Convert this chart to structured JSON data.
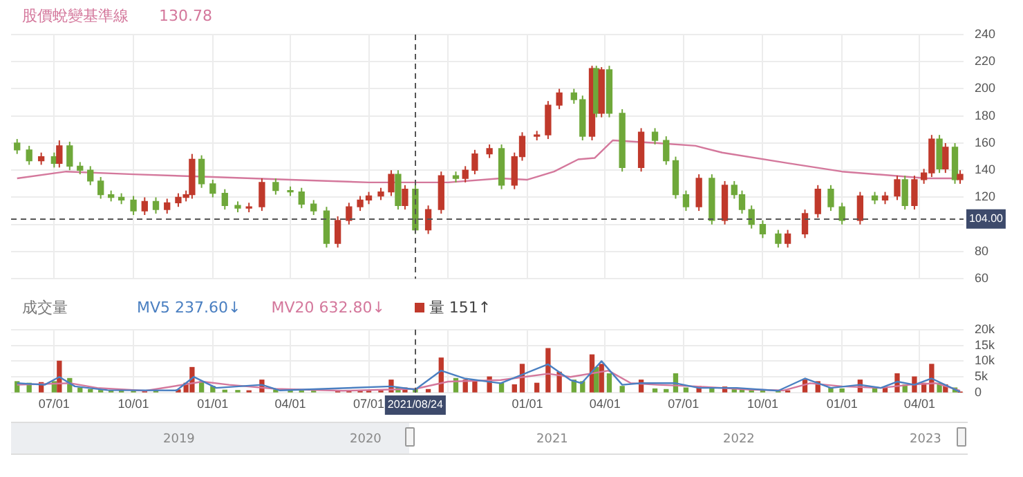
{
  "chart_data": [
    {
      "type": "candlestick",
      "legend": "top left",
      "marker": "none",
      "grid": true,
      "tick_labels": "y",
      "xlim": [
        "2020-05-12",
        "2023-05-22"
      ],
      "xticks": [
        "2020-07-01",
        "2020-10-01",
        "2021-01-01",
        "2021-04-01",
        "2021-07-01",
        "2021-10-01",
        "2022-01-01",
        "2022-04-01",
        "2022-07-01",
        "2022-10-01",
        "2023-01-01",
        "2023-04-01"
      ],
      "ylim": [
        60,
        240
      ],
      "yticks": [
        60,
        80,
        {
          "value": 100,
          "label": null
        },
        120,
        140,
        160,
        180,
        200,
        220,
        240
      ],
      "annotations": [
        "130.78"
      ],
      "ref_lines": [
        {
          "axis": "y",
          "value": 104,
          "label": "104.00",
          "line_style": "dashed",
          "color": "#555555"
        },
        {
          "axis": "x",
          "value": "2021-08-24",
          "line_style": "dashed",
          "color": "#555555"
        }
      ],
      "x": [
        "2020-05-19",
        "2020-06-02",
        "2020-06-16",
        "2020-07-01",
        "2020-07-07",
        "2020-07-19",
        "2020-07-31",
        "2020-08-12",
        "2020-08-24",
        "2020-09-05",
        "2020-09-17",
        "2020-10-01",
        "2020-10-14",
        "2020-10-27",
        "2020-11-09",
        "2020-11-22",
        "2020-12-01",
        "2020-12-08",
        "2020-12-19",
        "2021-01-01",
        "2021-01-15",
        "2021-01-30",
        "2021-02-12",
        "2021-02-27",
        "2021-03-15",
        "2021-04-01",
        "2021-04-14",
        "2021-04-28",
        "2021-05-13",
        "2021-05-26",
        "2021-06-08",
        "2021-06-21",
        "2021-07-01",
        "2021-07-15",
        "2021-07-27",
        "2021-08-04",
        "2021-08-12",
        "2021-08-24",
        "2021-09-08",
        "2021-09-23",
        "2021-10-10",
        "2021-10-21",
        "2021-11-01",
        "2021-11-18",
        "2021-12-02",
        "2021-12-17",
        "2021-12-26",
        "2022-01-12",
        "2022-01-25",
        "2022-02-07",
        "2022-02-24",
        "2022-03-06",
        "2022-03-17",
        "2022-03-22",
        "2022-03-28",
        "2022-04-06",
        "2022-04-21",
        "2022-05-13",
        "2022-05-29",
        "2022-06-11",
        "2022-06-22",
        "2022-07-04",
        "2022-07-19",
        "2022-08-03",
        "2022-08-18",
        "2022-08-29",
        "2022-09-07",
        "2022-09-18",
        "2022-10-01",
        "2022-10-19",
        "2022-10-30",
        "2022-11-19",
        "2022-12-04",
        "2022-12-19",
        "2023-01-01",
        "2023-01-22",
        "2023-02-08",
        "2023-02-20",
        "2023-03-06",
        "2023-03-15",
        "2023-03-26",
        "2023-04-06",
        "2023-04-15",
        "2023-04-24",
        "2023-05-01",
        "2023-05-12",
        "2023-05-18"
      ],
      "ohlc": [
        [
          160,
          163,
          152,
          155
        ],
        [
          155,
          158,
          144,
          147
        ],
        [
          147,
          153,
          144,
          150
        ],
        [
          150,
          153,
          142,
          145
        ],
        [
          145,
          162,
          142,
          158
        ],
        [
          158,
          161,
          140,
          143
        ],
        [
          143,
          146,
          137,
          140
        ],
        [
          140,
          143,
          129,
          132
        ],
        [
          132,
          135,
          119,
          122
        ],
        [
          122,
          125,
          117,
          120
        ],
        [
          120,
          123,
          115,
          118
        ],
        [
          118,
          121,
          107,
          110
        ],
        [
          110,
          120,
          107,
          117
        ],
        [
          117,
          120,
          108,
          111
        ],
        [
          111,
          119,
          108,
          116
        ],
        [
          116,
          123,
          113,
          120
        ],
        [
          120,
          125,
          117,
          122
        ],
        [
          122,
          152,
          119,
          148
        ],
        [
          148,
          151,
          127,
          130
        ],
        [
          130,
          133,
          120,
          123
        ],
        [
          123,
          126,
          111,
          114
        ],
        [
          114,
          117,
          109,
          112
        ],
        [
          112,
          116,
          109,
          113
        ],
        [
          113,
          134,
          110,
          131
        ],
        [
          131,
          134,
          122,
          125
        ],
        [
          125,
          128,
          121,
          124
        ],
        [
          124,
          127,
          112,
          115
        ],
        [
          115,
          118,
          107,
          110
        ],
        [
          110,
          113,
          83,
          86
        ],
        [
          86,
          106,
          83,
          103
        ],
        [
          103,
          116,
          100,
          113
        ],
        [
          113,
          121,
          110,
          118
        ],
        [
          118,
          124,
          115,
          121
        ],
        [
          121,
          127,
          118,
          124
        ],
        [
          124,
          140,
          121,
          137
        ],
        [
          137,
          140,
          111,
          114
        ],
        [
          114,
          129,
          111,
          126
        ],
        [
          126,
          129,
          93,
          96
        ],
        [
          96,
          114,
          93,
          111
        ],
        [
          111,
          139,
          108,
          136
        ],
        [
          136,
          139,
          131,
          134
        ],
        [
          134,
          143,
          131,
          140
        ],
        [
          140,
          155,
          137,
          152
        ],
        [
          152,
          159,
          149,
          156
        ],
        [
          156,
          159,
          126,
          129
        ],
        [
          129,
          153,
          126,
          150
        ],
        [
          150,
          168,
          147,
          165
        ],
        [
          165,
          169,
          162,
          166
        ],
        [
          166,
          191,
          163,
          188
        ],
        [
          188,
          200,
          185,
          197
        ],
        [
          197,
          200,
          189,
          192
        ],
        [
          192,
          195,
          162,
          165
        ],
        [
          165,
          217,
          162,
          215
        ],
        [
          215,
          217,
          179,
          182
        ],
        [
          182,
          216,
          179,
          214
        ],
        [
          214,
          217,
          179,
          182
        ],
        [
          182,
          185,
          139,
          142
        ],
        [
          142,
          171,
          139,
          168
        ],
        [
          168,
          171,
          159,
          162
        ],
        [
          162,
          165,
          144,
          147
        ],
        [
          147,
          150,
          119,
          122
        ],
        [
          122,
          125,
          110,
          113
        ],
        [
          113,
          137,
          110,
          134
        ],
        [
          134,
          137,
          100,
          103
        ],
        [
          103,
          132,
          100,
          129
        ],
        [
          129,
          132,
          119,
          122
        ],
        [
          122,
          125,
          108,
          111
        ],
        [
          111,
          114,
          97,
          100
        ],
        [
          100,
          103,
          90,
          93
        ],
        [
          93,
          96,
          83,
          86
        ],
        [
          86,
          96,
          83,
          93
        ],
        [
          93,
          111,
          90,
          108
        ],
        [
          108,
          129,
          105,
          126
        ],
        [
          126,
          129,
          110,
          113
        ],
        [
          113,
          116,
          100,
          103
        ],
        [
          103,
          124,
          100,
          121
        ],
        [
          121,
          124,
          115,
          118
        ],
        [
          118,
          124,
          115,
          121
        ],
        [
          121,
          136,
          118,
          133
        ],
        [
          133,
          136,
          111,
          114
        ],
        [
          114,
          136,
          111,
          133
        ],
        [
          133,
          141,
          130,
          138
        ],
        [
          138,
          166,
          135,
          163
        ],
        [
          163,
          166,
          138,
          141
        ],
        [
          141,
          160,
          138,
          157
        ],
        [
          157,
          160,
          130,
          133
        ],
        [
          133,
          140,
          130,
          137
        ]
      ],
      "colors": [
        "#6fa83a",
        "#6fa83a",
        "#c0392b",
        "#6fa83a",
        "#c0392b",
        "#6fa83a",
        "#6fa83a",
        "#6fa83a",
        "#6fa83a",
        "#6fa83a",
        "#6fa83a",
        "#6fa83a",
        "#c0392b",
        "#6fa83a",
        "#c0392b",
        "#c0392b",
        "#c0392b",
        "#c0392b",
        "#6fa83a",
        "#6fa83a",
        "#6fa83a",
        "#6fa83a",
        "#c0392b",
        "#c0392b",
        "#6fa83a",
        "#6fa83a",
        "#6fa83a",
        "#6fa83a",
        "#6fa83a",
        "#c0392b",
        "#c0392b",
        "#c0392b",
        "#c0392b",
        "#c0392b",
        "#c0392b",
        "#6fa83a",
        "#c0392b",
        "#6fa83a",
        "#c0392b",
        "#c0392b",
        "#6fa83a",
        "#c0392b",
        "#c0392b",
        "#c0392b",
        "#6fa83a",
        "#c0392b",
        "#c0392b",
        "#c0392b",
        "#c0392b",
        "#c0392b",
        "#6fa83a",
        "#6fa83a",
        "#c0392b",
        "#6fa83a",
        "#c0392b",
        "#6fa83a",
        "#6fa83a",
        "#c0392b",
        "#6fa83a",
        "#6fa83a",
        "#6fa83a",
        "#6fa83a",
        "#c0392b",
        "#6fa83a",
        "#c0392b",
        "#6fa83a",
        "#6fa83a",
        "#6fa83a",
        "#6fa83a",
        "#6fa83a",
        "#c0392b",
        "#c0392b",
        "#c0392b",
        "#6fa83a",
        "#6fa83a",
        "#c0392b",
        "#6fa83a",
        "#c0392b",
        "#c0392b",
        "#6fa83a",
        "#c0392b",
        "#c0392b",
        "#c0392b",
        "#6fa83a",
        "#c0392b",
        "#6fa83a",
        "#c0392b"
      ],
      "series": [
        {
          "name": "股價蛻變基準線",
          "type": "line",
          "color": "#d4789c",
          "x": [
            "2020-05-19",
            "2020-07-15",
            "2020-10-01",
            "2021-01-01",
            "2021-04-01",
            "2021-07-01",
            "2021-10-01",
            "2021-12-01",
            "2022-01-01",
            "2022-02-01",
            "2022-03-01",
            "2022-03-20",
            "2022-04-10",
            "2022-06-01",
            "2022-07-15",
            "2022-08-15",
            "2022-11-01",
            "2023-01-01",
            "2023-04-10",
            "2023-05-18"
          ],
          "values": [
            134,
            139,
            137,
            135,
            133,
            131,
            131,
            134,
            133,
            139,
            148,
            149,
            162,
            160,
            158,
            153,
            145,
            139,
            134,
            134
          ]
        }
      ]
    },
    {
      "type": "bar",
      "title": "成交量",
      "legend": "top left",
      "marker": "none",
      "grid": true,
      "xlim": [
        "2020-05-12",
        "2023-05-22"
      ],
      "xticks": [
        {
          "value": "2020-07-01",
          "label": "07/01"
        },
        {
          "value": "2020-10-01",
          "label": "10/01"
        },
        {
          "value": "2021-01-01",
          "label": "01/01"
        },
        {
          "value": "2021-04-01",
          "label": "04/01"
        },
        {
          "value": "2021-07-01",
          "label": "07/01"
        },
        {
          "value": "2021-10-01",
          "label": null
        },
        {
          "value": "2022-01-01",
          "label": "01/01"
        },
        {
          "value": "2022-04-01",
          "label": "04/01"
        },
        {
          "value": "2022-07-01",
          "label": "07/01"
        },
        {
          "value": "2022-10-01",
          "label": "10/01"
        },
        {
          "value": "2023-01-01",
          "label": "01/01"
        },
        {
          "value": "2023-04-01",
          "label": "04/01"
        }
      ],
      "ylim": [
        0,
        20000
      ],
      "yticks": [
        0,
        {
          "value": 5000,
          "label": "5k"
        },
        {
          "value": 10000,
          "label": "10k"
        },
        {
          "value": 15000,
          "label": "15k"
        },
        {
          "value": 20000,
          "label": "20k"
        }
      ],
      "ref_lines": [
        {
          "axis": "x",
          "value": "2021-08-24",
          "label": "2021/08/24",
          "line_style": "dashed",
          "color": "#555555"
        }
      ],
      "annotations": [
        "2019",
        "2020",
        "2021",
        "2022",
        "2023"
      ],
      "x": [
        "2020-05-19",
        "2020-06-02",
        "2020-06-16",
        "2020-07-01",
        "2020-07-07",
        "2020-07-19",
        "2020-07-31",
        "2020-08-12",
        "2020-08-24",
        "2020-09-05",
        "2020-09-17",
        "2020-10-01",
        "2020-10-14",
        "2020-10-27",
        "2020-11-09",
        "2020-11-22",
        "2020-12-01",
        "2020-12-08",
        "2020-12-19",
        "2021-01-01",
        "2021-01-15",
        "2021-01-30",
        "2021-02-12",
        "2021-02-27",
        "2021-03-15",
        "2021-04-01",
        "2021-04-14",
        "2021-04-28",
        "2021-05-13",
        "2021-05-26",
        "2021-06-08",
        "2021-06-21",
        "2021-07-01",
        "2021-07-15",
        "2021-07-27",
        "2021-08-04",
        "2021-08-12",
        "2021-08-24",
        "2021-09-08",
        "2021-09-23",
        "2021-10-10",
        "2021-10-21",
        "2021-11-01",
        "2021-11-18",
        "2021-12-02",
        "2021-12-17",
        "2021-12-26",
        "2022-01-12",
        "2022-01-25",
        "2022-02-07",
        "2022-02-24",
        "2022-03-06",
        "2022-03-17",
        "2022-03-22",
        "2022-03-28",
        "2022-04-06",
        "2022-04-21",
        "2022-05-13",
        "2022-05-29",
        "2022-06-11",
        "2022-06-22",
        "2022-07-04",
        "2022-07-19",
        "2022-08-03",
        "2022-08-18",
        "2022-08-29",
        "2022-09-07",
        "2022-09-18",
        "2022-10-01",
        "2022-10-19",
        "2022-10-30",
        "2022-11-19",
        "2022-12-04",
        "2022-12-19",
        "2023-01-01",
        "2023-01-22",
        "2023-02-08",
        "2023-02-20",
        "2023-03-06",
        "2023-03-15",
        "2023-03-26",
        "2023-04-06",
        "2023-04-15",
        "2023-04-24",
        "2023-05-01",
        "2023-05-12",
        "2023-05-18"
      ],
      "series": [
        {
          "name": "量 151↑",
          "color": "#c0392b",
          "values": [
            3500,
            3000,
            3200,
            3500,
            10000,
            4500,
            1500,
            1000,
            700,
            600,
            600,
            500,
            600,
            700,
            null,
            900,
            3000,
            8000,
            3500,
            2000,
            800,
            700,
            600,
            4000,
            900,
            600,
            500,
            500,
            null,
            600,
            500,
            600,
            700,
            900,
            4000,
            1500,
            1500,
            1200,
            1000,
            11000,
            4500,
            4000,
            3500,
            5000,
            3000,
            2500,
            9000,
            3000,
            14000,
            6500,
            4000,
            3500,
            12000,
            8000,
            9000,
            6000,
            2000,
            4000,
            1200,
            1000,
            6000,
            1500,
            2000,
            1500,
            1800,
            1200,
            900,
            700,
            600,
            700,
            600,
            4000,
            3500,
            1500,
            1200,
            4000,
            1500,
            1500,
            6000,
            2500,
            5000,
            3000,
            9000,
            3000,
            2500,
            1500,
            151
          ],
          "colors": [
            "#6fa83a",
            "#6fa83a",
            "#c0392b",
            "#6fa83a",
            "#c0392b",
            "#6fa83a",
            "#6fa83a",
            "#6fa83a",
            "#6fa83a",
            "#6fa83a",
            "#6fa83a",
            "#6fa83a",
            "#c0392b",
            "#6fa83a",
            "#c0392b",
            "#c0392b",
            "#c0392b",
            "#c0392b",
            "#6fa83a",
            "#6fa83a",
            "#6fa83a",
            "#6fa83a",
            "#c0392b",
            "#c0392b",
            "#6fa83a",
            "#6fa83a",
            "#6fa83a",
            "#6fa83a",
            "#6fa83a",
            "#c0392b",
            "#c0392b",
            "#c0392b",
            "#c0392b",
            "#c0392b",
            "#c0392b",
            "#6fa83a",
            "#c0392b",
            "#6fa83a",
            "#c0392b",
            "#c0392b",
            "#6fa83a",
            "#c0392b",
            "#c0392b",
            "#c0392b",
            "#6fa83a",
            "#c0392b",
            "#c0392b",
            "#c0392b",
            "#c0392b",
            "#c0392b",
            "#6fa83a",
            "#6fa83a",
            "#c0392b",
            "#6fa83a",
            "#c0392b",
            "#6fa83a",
            "#6fa83a",
            "#c0392b",
            "#6fa83a",
            "#6fa83a",
            "#6fa83a",
            "#6fa83a",
            "#c0392b",
            "#6fa83a",
            "#c0392b",
            "#6fa83a",
            "#6fa83a",
            "#6fa83a",
            "#6fa83a",
            "#6fa83a",
            "#c0392b",
            "#c0392b",
            "#c0392b",
            "#6fa83a",
            "#6fa83a",
            "#c0392b",
            "#6fa83a",
            "#c0392b",
            "#c0392b",
            "#6fa83a",
            "#c0392b",
            "#c0392b",
            "#c0392b",
            "#6fa83a",
            "#c0392b",
            "#6fa83a",
            "#c0392b"
          ]
        },
        {
          "name": "MV5 237.60↓",
          "type": "line",
          "color": "#4a7fc1",
          "x": [
            "2020-05-19",
            "2020-06-20",
            "2020-07-07",
            "2020-07-25",
            "2020-09-01",
            "2020-11-20",
            "2020-12-10",
            "2021-01-05",
            "2021-02-27",
            "2021-03-20",
            "2021-07-27",
            "2021-08-24",
            "2021-09-23",
            "2021-10-20",
            "2021-12-01",
            "2022-01-25",
            "2022-02-20",
            "2022-03-05",
            "2022-03-28",
            "2022-04-21",
            "2022-05-13",
            "2022-06-22",
            "2022-07-19",
            "2022-09-01",
            "2022-10-19",
            "2022-11-19",
            "2022-12-19",
            "2023-01-22",
            "2023-02-15",
            "2023-03-06",
            "2023-03-26",
            "2023-04-15",
            "2023-05-18"
          ],
          "values": [
            3000,
            2500,
            5000,
            2000,
            800,
            700,
            5000,
            1500,
            2500,
            700,
            2000,
            1000,
            7000,
            4500,
            3000,
            9000,
            4000,
            3000,
            10000,
            2500,
            3000,
            3000,
            1500,
            1500,
            600,
            4500,
            1500,
            2500,
            1500,
            3500,
            2500,
            4500,
            237.6
          ]
        },
        {
          "name": "MV20 632.80↓",
          "type": "line",
          "color": "#d4789c",
          "x": [
            "2020-05-19",
            "2020-07-20",
            "2020-08-20",
            "2020-10-15",
            "2020-12-20",
            "2021-01-20",
            "2021-03-15",
            "2021-06-01",
            "2021-08-24",
            "2021-10-01",
            "2021-12-01",
            "2022-01-25",
            "2022-02-20",
            "2022-04-05",
            "2022-05-01",
            "2022-06-01",
            "2022-07-15",
            "2022-09-15",
            "2022-10-25",
            "2022-11-25",
            "2023-01-01",
            "2023-02-15",
            "2023-03-20",
            "2023-04-20",
            "2023-05-18"
          ],
          "values": [
            2500,
            3000,
            1500,
            600,
            3500,
            2500,
            1200,
            600,
            1200,
            3500,
            4000,
            6000,
            5000,
            7000,
            3000,
            2500,
            2000,
            1000,
            700,
            3000,
            2000,
            1500,
            2500,
            3000,
            632.8
          ]
        }
      ]
    }
  ]
}
